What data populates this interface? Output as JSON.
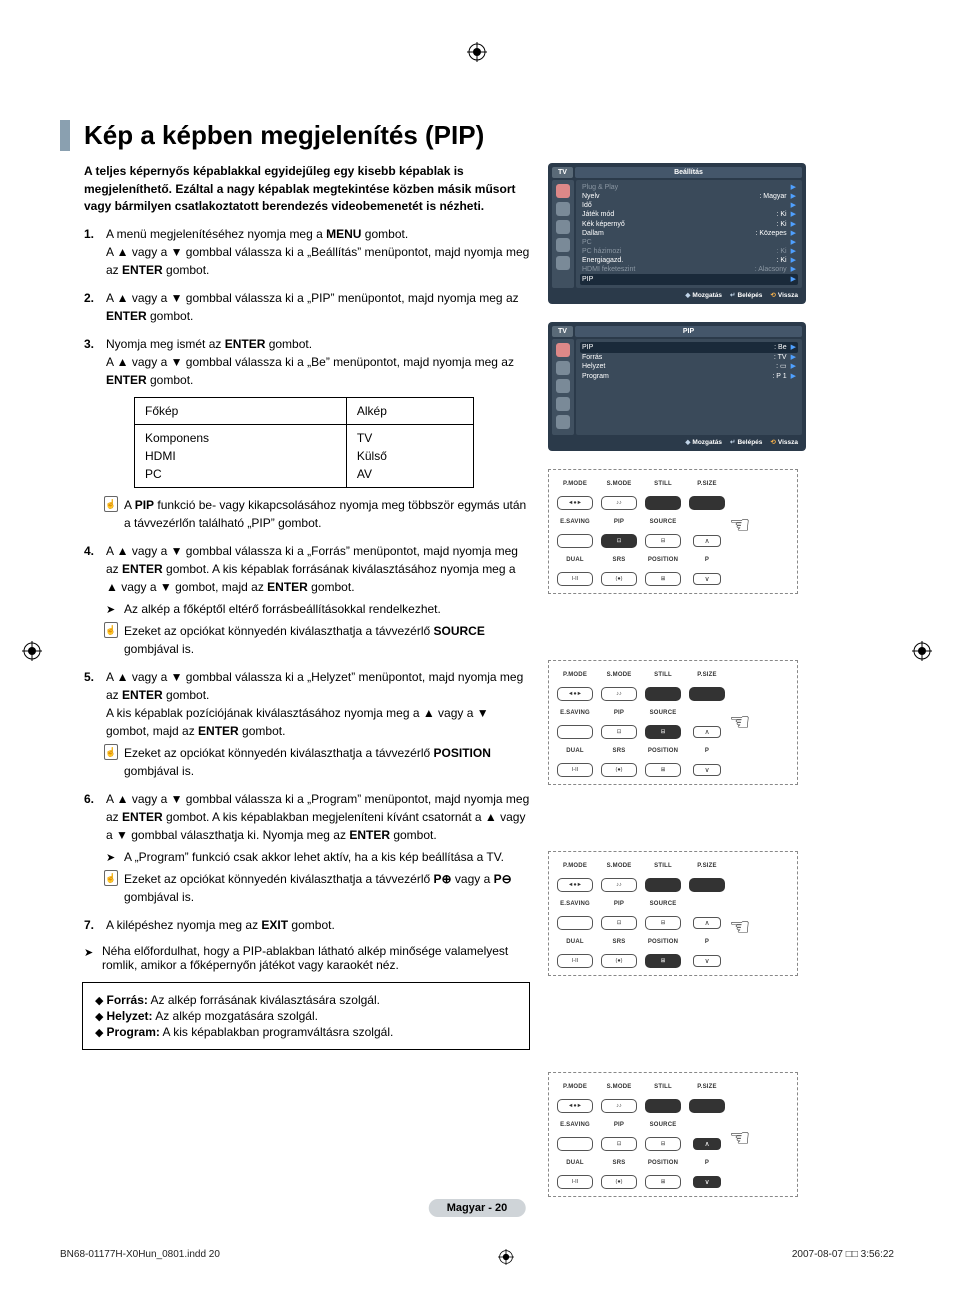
{
  "page": {
    "title": "Kép a képben megjelenítés (PIP)",
    "intro": "A teljes képernyős képablakkal egyidejűleg egy kisebb képablak is megjeleníthető. Ezáltal a nagy képablak megtekintése közben másik műsort vagy bármilyen csatlakoztatott berendezés videobemenetét is nézheti.",
    "footer_pill": "Magyar -  20",
    "print_left": "BN68-01177H-X0Hun_0801.indd   20",
    "print_right": "2007-08-07   □□ 3:56:22"
  },
  "steps": {
    "s1": {
      "num": "1.",
      "text_a": "A menü megjelenítéséhez nyomja meg a ",
      "bold_a": "MENU",
      "text_b": " gombot.",
      "line2_a": "A ▲ vagy a ▼ gombbal válassza ki a „Beállítás” menüpontot, majd nyomja meg az ",
      "bold2": "ENTER",
      "line2_b": " gombot."
    },
    "s2": {
      "num": "2.",
      "text_a": "A ▲ vagy a ▼ gombbal válassza ki a „PIP” menüpontot, majd nyomja meg az ",
      "bold_a": "ENTER",
      "text_b": " gombot."
    },
    "s3": {
      "num": "3.",
      "text_a": "Nyomja meg ismét az ",
      "bold_a": "ENTER",
      "text_b": " gombot.",
      "line2_a": "A ▲ vagy a ▼ gombbal válassza ki a „Be” menüpontot, majd nyomja meg az ",
      "bold2": "ENTER",
      "line2_b": " gombot.",
      "table": {
        "h1": "Főkép",
        "h2": "Alkép",
        "c1": "Komponens\nHDMI\nPC",
        "c2": "TV\nKülső\nAV"
      },
      "note_a": "A ",
      "note_bold": "PIP",
      "note_b": " funkció be- vagy kikapcsolásához nyomja meg többször egymás után a távvezérlőn található „PIP” gombot."
    },
    "s4": {
      "num": "4.",
      "text_a": "A ▲ vagy a ▼ gombbal válassza ki a „Forrás” menüpontot, majd nyomja meg az ",
      "bold_a": "ENTER",
      "text_b": " gombot. A kis képablak forrásának kiválasztásához nyomja meg a ▲ vagy a ▼ gombot, majd az ",
      "bold_b": "ENTER",
      "text_c": " gombot.",
      "sub1": "Az alkép a főképtől eltérő forrásbeállításokkal rendelkezhet.",
      "sub2_a": "Ezeket az opciókat könnyedén kiválaszthatja a távvezérlő ",
      "sub2_bold": "SOURCE",
      "sub2_b": " gombjával is."
    },
    "s5": {
      "num": "5.",
      "text_a": "A ▲ vagy a ▼ gombbal válassza ki a „Helyzet” menüpontot, majd nyomja meg az ",
      "bold_a": "ENTER",
      "text_b": " gombot.",
      "line2": "A kis képablak pozíciójának kiválasztásához nyomja meg a ▲ vagy a ▼ gombot, majd az ",
      "bold2": "ENTER",
      "line2b": " gombot.",
      "sub_a": "Ezeket az opciókat könnyedén kiválaszthatja a távvezérlő ",
      "sub_bold": "POSITION",
      "sub_b": " gombjával is."
    },
    "s6": {
      "num": "6.",
      "text_a": "A ▲ vagy a ▼ gombbal válassza ki a „Program” menüpontot, majd nyomja meg az ",
      "bold_a": "ENTER",
      "text_b": " gombot. A kis képablakban megjeleníteni kívánt csatornát a ▲ vagy a ▼ gombbal választhatja ki. Nyomja meg az ",
      "bold_b": "ENTER",
      "text_c": " gombot.",
      "sub1": "A „Program” funkció csak akkor lehet aktív, ha a kis kép beállítása a TV.",
      "sub2_a": "Ezeket az opciókat könnyedén kiválaszthatja a távvezérlő ",
      "sub2_bold": "P⊕",
      "sub2_mid": " vagy a ",
      "sub2_bold2": "P⊖",
      "sub2_b": " gombjával is."
    },
    "s7": {
      "num": "7.",
      "text_a": "A kilépéshez nyomja meg az ",
      "bold_a": "EXIT",
      "text_b": " gombot."
    },
    "tail": "Néha előfordulhat, hogy a PIP-ablakban látható alkép minősége valamelyest romlik, amikor a főképernyőn játékot vagy karaokét néz."
  },
  "defs": {
    "d1_b": "Forrás:",
    "d1": " Az alkép forrásának kiválasztására szolgál.",
    "d2_b": "Helyzet:",
    "d2": " Az alkép mozgatására szolgál.",
    "d3_b": "Program:",
    "d3": " A kis képablakban programváltásra szolgál."
  },
  "osd1": {
    "tv": "TV",
    "title": "Beállítás",
    "rows": [
      {
        "l": "Plug & Play",
        "v": "",
        "dim": true
      },
      {
        "l": "Nyelv",
        "v": ": Magyar"
      },
      {
        "l": "Idő",
        "v": ""
      },
      {
        "l": "Játék mód",
        "v": ": Ki"
      },
      {
        "l": "Kék képernyő",
        "v": ": Ki"
      },
      {
        "l": "Dallam",
        "v": ": Közepes"
      },
      {
        "l": "PC",
        "v": "",
        "dim": true
      },
      {
        "l": "PC házimozi",
        "v": ": Ki",
        "dim": true
      },
      {
        "l": "Energiagazd.",
        "v": ": Ki"
      },
      {
        "l": "HDMI feketeszint",
        "v": ": Alacsony",
        "dim": true
      }
    ],
    "hl": "PIP",
    "f1": "Mozgatás",
    "f2": "Belépés",
    "f3": "Vissza"
  },
  "osd2": {
    "tv": "TV",
    "title": "PIP",
    "rows": [
      {
        "l": "PIP",
        "v": ": Be",
        "hl": true
      },
      {
        "l": "Forrás",
        "v": ": TV"
      },
      {
        "l": "Helyzet",
        "v": ": ▭"
      },
      {
        "l": "Program",
        "v": ": P 1"
      }
    ],
    "f1": "Mozgatás",
    "f2": "Belépés",
    "f3": "Vissza"
  },
  "remote": {
    "labels": {
      "pmode": "P.MODE",
      "smode": "S.MODE",
      "still": "STILL",
      "psize": "P.SIZE",
      "esaving": "E.SAVING",
      "pip": "PIP",
      "source": "SOURCE",
      "dual": "DUAL",
      "srs": "SRS",
      "position": "POSITION",
      "p": "P"
    },
    "btn_glyphs": {
      "pmode": "◄●►",
      "smode": "♪♪",
      "still": "",
      "psize": "",
      "esaving": "",
      "pip": "⊡",
      "source": "⊟",
      "position": "⊞",
      "dual": "I-II",
      "srs": "(●)",
      "parrow_up": "∧",
      "parrow_dn": "∨"
    }
  },
  "style": {
    "osd_bg": "#2b3a4a",
    "osd_list_bg": "#3a4a5a",
    "osd_caret": "#4fa0ff",
    "osd_dim": "#8a96a2",
    "pill_bg": "#cfd4d8",
    "title_bar": "#8aa0b0"
  }
}
